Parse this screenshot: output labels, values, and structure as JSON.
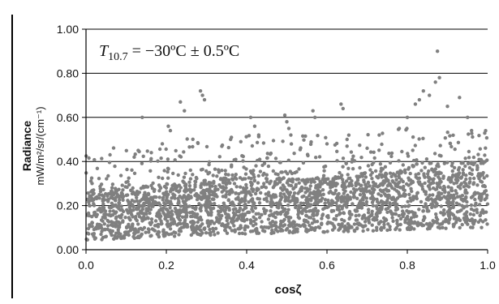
{
  "chart_data": {
    "type": "scatter",
    "xlabel": "cosζ",
    "ylabel_line1": "Radiance",
    "ylabel_line2": "mW/m²/sr/(cm⁻¹)",
    "annotation": {
      "symbol": "T",
      "subscript": "10.7",
      "text": " = −30ºC ± 0.5ºC"
    },
    "xlim": [
      0.0,
      1.0
    ],
    "ylim": [
      0.0,
      1.0
    ],
    "x_ticks": [
      0.0,
      0.2,
      0.4,
      0.6,
      0.8,
      1.0
    ],
    "x_tick_labels": [
      "0.0",
      "0.2",
      "0.4",
      "0.6",
      "0.8",
      "1.0"
    ],
    "y_ticks": [
      0.0,
      0.2,
      0.4,
      0.6,
      0.8,
      1.0
    ],
    "y_tick_labels": [
      "0.00",
      "0.20",
      "0.40",
      "0.60",
      "0.80",
      "1.00"
    ],
    "grid": "horizontal",
    "marker_color": "#808080",
    "band": {
      "x": [
        0.0,
        0.2,
        0.4,
        0.6,
        0.8,
        1.0
      ],
      "lower": [
        0.04,
        0.06,
        0.07,
        0.08,
        0.09,
        0.1
      ],
      "upper": [
        0.25,
        0.3,
        0.32,
        0.32,
        0.35,
        0.4
      ]
    },
    "outliers": [
      {
        "x": 0.875,
        "y": 0.9
      },
      {
        "x": 0.88,
        "y": 0.78
      },
      {
        "x": 0.87,
        "y": 0.76
      },
      {
        "x": 0.855,
        "y": 0.7
      },
      {
        "x": 0.84,
        "y": 0.72
      },
      {
        "x": 0.83,
        "y": 0.68
      },
      {
        "x": 0.82,
        "y": 0.66
      },
      {
        "x": 0.9,
        "y": 0.65
      },
      {
        "x": 0.93,
        "y": 0.69
      },
      {
        "x": 0.95,
        "y": 0.6
      },
      {
        "x": 0.96,
        "y": 0.54
      },
      {
        "x": 0.8,
        "y": 0.6
      },
      {
        "x": 0.285,
        "y": 0.72
      },
      {
        "x": 0.29,
        "y": 0.7
      },
      {
        "x": 0.295,
        "y": 0.68
      },
      {
        "x": 0.235,
        "y": 0.67
      },
      {
        "x": 0.245,
        "y": 0.63
      },
      {
        "x": 0.205,
        "y": 0.56
      },
      {
        "x": 0.21,
        "y": 0.54
      },
      {
        "x": 0.14,
        "y": 0.6
      },
      {
        "x": 0.13,
        "y": 0.45
      },
      {
        "x": 0.41,
        "y": 0.6
      },
      {
        "x": 0.42,
        "y": 0.56
      },
      {
        "x": 0.43,
        "y": 0.52
      },
      {
        "x": 0.495,
        "y": 0.61
      },
      {
        "x": 0.5,
        "y": 0.58
      },
      {
        "x": 0.505,
        "y": 0.55
      },
      {
        "x": 0.51,
        "y": 0.52
      },
      {
        "x": 0.565,
        "y": 0.63
      },
      {
        "x": 0.57,
        "y": 0.6
      },
      {
        "x": 0.635,
        "y": 0.66
      },
      {
        "x": 0.64,
        "y": 0.64
      },
      {
        "x": 0.65,
        "y": 0.5
      },
      {
        "x": 0.73,
        "y": 0.52
      },
      {
        "x": 0.78,
        "y": 0.55
      },
      {
        "x": 0.36,
        "y": 0.5
      },
      {
        "x": 0.6,
        "y": 0.48
      },
      {
        "x": 0.7,
        "y": 0.46
      },
      {
        "x": 0.12,
        "y": 0.42
      },
      {
        "x": 0.19,
        "y": 0.48
      }
    ],
    "n_points": 2600
  }
}
